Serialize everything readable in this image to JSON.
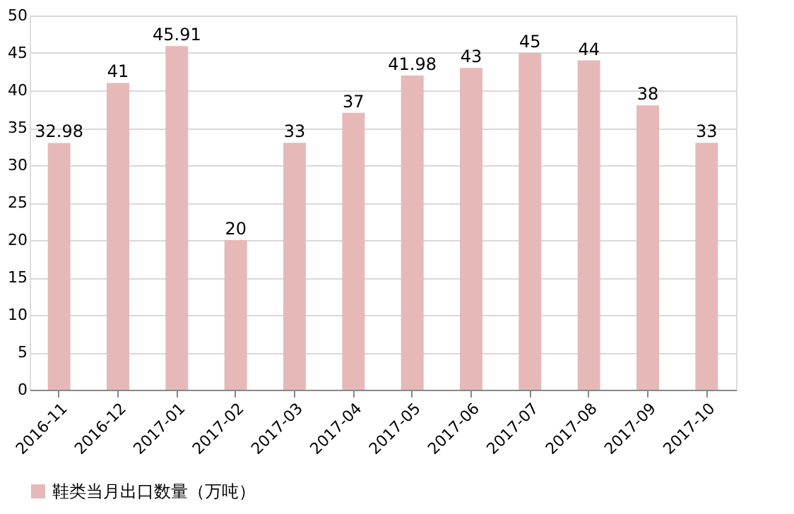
{
  "chart_data": {
    "type": "bar",
    "categories": [
      "2016-11",
      "2016-12",
      "2017-01",
      "2017-02",
      "2017-03",
      "2017-04",
      "2017-05",
      "2017-06",
      "2017-07",
      "2017-08",
      "2017-09",
      "2017-10"
    ],
    "series": [
      {
        "name": "鞋类当月出口数量（万吨）",
        "color": "#e6b9b8",
        "values": [
          32.98,
          41,
          45.91,
          20,
          33,
          37,
          41.98,
          43,
          45,
          44,
          38,
          33
        ]
      }
    ],
    "ylim": [
      0,
      50
    ],
    "yticks": [
      0,
      5,
      10,
      15,
      20,
      25,
      30,
      35,
      40,
      45,
      50
    ],
    "grid": "y",
    "legend": "bottom",
    "data_labels": true
  }
}
